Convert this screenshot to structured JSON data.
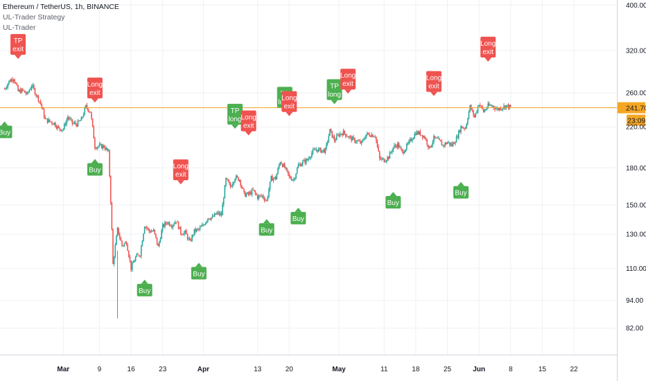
{
  "legend": {
    "symbol": "Ethereum / TetherUS, 1h, BINANCE",
    "strategy": "UL-Trader Strategy",
    "indicator": "UL-Trader"
  },
  "price_line": {
    "value": "241.70",
    "color": "#f5a623"
  },
  "countdown": "23:09",
  "colors": {
    "up": "#26a69a",
    "down": "#ef5350",
    "buy": "#4caf50",
    "exit": "#ef5350",
    "grid": "#eef0f3",
    "axis_text": "#131722"
  },
  "chart_data": {
    "type": "candlestick",
    "title": "Ethereum / TetherUS, 1h, BINANCE",
    "y_scale": "log",
    "ylim": [
      72,
      410
    ],
    "y_ticks": [
      "400.00",
      "320.00",
      "260.00",
      "220.00",
      "180.00",
      "150.00",
      "130.00",
      "110.00",
      "94.00",
      "82.00"
    ],
    "x_ticks": [
      "Mar",
      "9",
      "16",
      "23",
      "Apr",
      "13",
      "20",
      "May",
      "11",
      "18",
      "25",
      "Jun",
      "8",
      "15",
      "22"
    ],
    "x_tick_bold": [
      "Mar",
      "Apr",
      "May",
      "Jun"
    ],
    "x_tick_dates": [
      "2020-03-01",
      "2020-03-09",
      "2020-03-16",
      "2020-03-23",
      "2020-04-01",
      "2020-04-13",
      "2020-04-20",
      "2020-05-01",
      "2020-05-11",
      "2020-05-18",
      "2020-05-25",
      "2020-06-01",
      "2020-06-08",
      "2020-06-15",
      "2020-06-22"
    ],
    "price_path": [
      [
        "2020-02-17",
        265
      ],
      [
        "2020-02-18",
        275
      ],
      [
        "2020-02-19",
        280
      ],
      [
        "2020-02-20",
        262
      ],
      [
        "2020-02-21",
        263
      ],
      [
        "2020-02-22",
        258
      ],
      [
        "2020-02-23",
        270
      ],
      [
        "2020-02-24",
        258
      ],
      [
        "2020-02-25",
        247
      ],
      [
        "2020-02-26",
        228
      ],
      [
        "2020-02-27",
        226
      ],
      [
        "2020-02-28",
        224
      ],
      [
        "2020-02-29",
        218
      ],
      [
        "2020-03-01",
        218
      ],
      [
        "2020-03-02",
        231
      ],
      [
        "2020-03-03",
        224
      ],
      [
        "2020-03-04",
        223
      ],
      [
        "2020-03-05",
        228
      ],
      [
        "2020-03-06",
        243
      ],
      [
        "2020-03-07",
        237
      ],
      [
        "2020-03-08",
        200
      ],
      [
        "2020-03-09",
        200
      ],
      [
        "2020-03-10",
        200
      ],
      [
        "2020-03-11",
        194
      ],
      [
        "2020-03-12",
        112
      ],
      [
        "2020-03-13",
        133
      ],
      [
        "2020-03-14",
        123
      ],
      [
        "2020-03-15",
        125
      ],
      [
        "2020-03-16",
        110
      ],
      [
        "2020-03-17",
        116
      ],
      [
        "2020-03-18",
        118
      ],
      [
        "2020-03-19",
        136
      ],
      [
        "2020-03-20",
        132
      ],
      [
        "2020-03-21",
        132
      ],
      [
        "2020-03-22",
        122
      ],
      [
        "2020-03-23",
        135
      ],
      [
        "2020-03-24",
        138
      ],
      [
        "2020-03-25",
        136
      ],
      [
        "2020-03-26",
        139
      ],
      [
        "2020-03-27",
        131
      ],
      [
        "2020-03-28",
        131
      ],
      [
        "2020-03-29",
        125
      ],
      [
        "2020-03-30",
        132
      ],
      [
        "2020-03-31",
        133
      ],
      [
        "2020-04-01",
        136
      ],
      [
        "2020-04-02",
        141
      ],
      [
        "2020-04-03",
        141
      ],
      [
        "2020-04-04",
        144
      ],
      [
        "2020-04-05",
        143
      ],
      [
        "2020-04-06",
        170
      ],
      [
        "2020-04-07",
        164
      ],
      [
        "2020-04-08",
        172
      ],
      [
        "2020-04-09",
        170
      ],
      [
        "2020-04-10",
        158
      ],
      [
        "2020-04-11",
        158
      ],
      [
        "2020-04-12",
        161
      ],
      [
        "2020-04-13",
        156
      ],
      [
        "2020-04-14",
        157
      ],
      [
        "2020-04-15",
        153
      ],
      [
        "2020-04-16",
        171
      ],
      [
        "2020-04-17",
        171
      ],
      [
        "2020-04-18",
        186
      ],
      [
        "2020-04-19",
        180
      ],
      [
        "2020-04-20",
        172
      ],
      [
        "2020-04-21",
        170
      ],
      [
        "2020-04-22",
        182
      ],
      [
        "2020-04-23",
        185
      ],
      [
        "2020-04-24",
        187
      ],
      [
        "2020-04-25",
        194
      ],
      [
        "2020-04-26",
        197
      ],
      [
        "2020-04-27",
        196
      ],
      [
        "2020-04-28",
        196
      ],
      [
        "2020-04-29",
        216
      ],
      [
        "2020-04-30",
        206
      ],
      [
        "2020-05-01",
        212
      ],
      [
        "2020-05-02",
        214
      ],
      [
        "2020-05-03",
        210
      ],
      [
        "2020-05-04",
        207
      ],
      [
        "2020-05-05",
        205
      ],
      [
        "2020-05-06",
        203
      ],
      [
        "2020-05-07",
        212
      ],
      [
        "2020-05-08",
        212
      ],
      [
        "2020-05-09",
        211
      ],
      [
        "2020-05-10",
        188
      ],
      [
        "2020-05-11",
        187
      ],
      [
        "2020-05-12",
        190
      ],
      [
        "2020-05-13",
        199
      ],
      [
        "2020-05-14",
        202
      ],
      [
        "2020-05-15",
        194
      ],
      [
        "2020-05-16",
        200
      ],
      [
        "2020-05-17",
        207
      ],
      [
        "2020-05-18",
        214
      ],
      [
        "2020-05-19",
        213
      ],
      [
        "2020-05-20",
        209
      ],
      [
        "2020-05-21",
        198
      ],
      [
        "2020-05-22",
        208
      ],
      [
        "2020-05-23",
        206
      ],
      [
        "2020-05-24",
        201
      ],
      [
        "2020-05-25",
        204
      ],
      [
        "2020-05-26",
        201
      ],
      [
        "2020-05-27",
        208
      ],
      [
        "2020-05-28",
        220
      ],
      [
        "2020-05-29",
        219
      ],
      [
        "2020-05-30",
        243
      ],
      [
        "2020-05-31",
        231
      ],
      [
        "2020-06-01",
        247
      ],
      [
        "2020-06-02",
        237
      ],
      [
        "2020-06-03",
        244
      ],
      [
        "2020-06-04",
        244
      ],
      [
        "2020-06-05",
        240
      ],
      [
        "2020-06-06",
        242
      ],
      [
        "2020-06-07",
        244
      ],
      [
        "2020-06-08",
        242
      ]
    ],
    "signals": [
      {
        "date": "2020-02-17",
        "type": "buy",
        "lines": [
          "Buy"
        ],
        "price": 226
      },
      {
        "date": "2020-02-20",
        "type": "exit",
        "lines": [
          "TP",
          "exit"
        ],
        "price": 307
      },
      {
        "date": "2020-03-08",
        "type": "exit",
        "lines": [
          "Long",
          "exit"
        ],
        "price": 248
      },
      {
        "date": "2020-03-08",
        "type": "buy",
        "lines": [
          "Buy"
        ],
        "price": 188
      },
      {
        "date": "2020-03-19",
        "type": "buy",
        "lines": [
          "Buy"
        ],
        "price": 104
      },
      {
        "date": "2020-03-27",
        "type": "exit",
        "lines": [
          "Long",
          "exit"
        ],
        "price": 166
      },
      {
        "date": "2020-03-31",
        "type": "buy",
        "lines": [
          "Buy"
        ],
        "price": 113
      },
      {
        "date": "2020-04-08",
        "type": "buy",
        "lines": [
          "TP",
          "long"
        ],
        "price": 218
      },
      {
        "date": "2020-04-11",
        "type": "exit",
        "lines": [
          "Long",
          "exit"
        ],
        "price": 211
      },
      {
        "date": "2020-04-15",
        "type": "buy",
        "lines": [
          "Buy"
        ],
        "price": 140
      },
      {
        "date": "2020-04-19",
        "type": "buy",
        "lines": [
          "TP",
          "long"
        ],
        "price": 237
      },
      {
        "date": "2020-04-20",
        "type": "exit",
        "lines": [
          "Long",
          "exit"
        ],
        "price": 232
      },
      {
        "date": "2020-04-22",
        "type": "buy",
        "lines": [
          "Buy"
        ],
        "price": 148
      },
      {
        "date": "2020-04-30",
        "type": "buy",
        "lines": [
          "TP",
          "long"
        ],
        "price": 246
      },
      {
        "date": "2020-05-03",
        "type": "exit",
        "lines": [
          "Long",
          "exit"
        ],
        "price": 259
      },
      {
        "date": "2020-05-13",
        "type": "buy",
        "lines": [
          "Buy"
        ],
        "price": 160
      },
      {
        "date": "2020-05-22",
        "type": "exit",
        "lines": [
          "Long",
          "exit"
        ],
        "price": 256
      },
      {
        "date": "2020-05-28",
        "type": "buy",
        "lines": [
          "Buy"
        ],
        "price": 168
      },
      {
        "date": "2020-06-03",
        "type": "exit",
        "lines": [
          "Long",
          "exit"
        ],
        "price": 303
      }
    ]
  }
}
